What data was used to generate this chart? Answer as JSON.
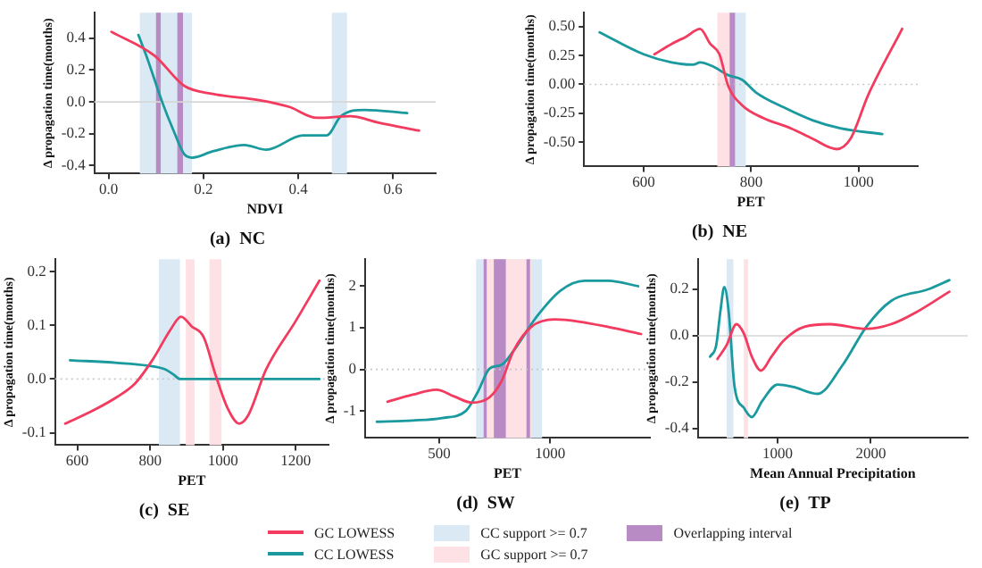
{
  "chart_data": [
    {
      "type": "line",
      "title": "(a)  NC",
      "xlabel": "NDVI",
      "ylabel": "Δ propagation time(months)",
      "xlim": [
        -0.03,
        0.69
      ],
      "xticks": [
        {
          "value": 0,
          "label": "0.0"
        },
        {
          "value": 0.2,
          "label": "0.2"
        },
        {
          "value": 0.4,
          "label": "0.4"
        },
        {
          "value": 0.6,
          "label": "0.6"
        }
      ],
      "ylim": [
        -0.45,
        0.56
      ],
      "yticks": [
        {
          "value": -0.4,
          "label": "-0.4"
        },
        {
          "value": -0.2,
          "label": "-0.2"
        },
        {
          "value": 0,
          "label": "0.0"
        },
        {
          "value": 0.2,
          "label": "0.2"
        },
        {
          "value": 0.4,
          "label": "0.4"
        }
      ],
      "series": [
        {
          "color": "#f23b5f",
          "x": [
            0.006,
            0.097,
            0.16,
            0.22,
            0.32,
            0.38,
            0.44,
            0.51,
            0.57,
            0.655
          ],
          "values": [
            0.44,
            0.29,
            0.1,
            0.05,
            0.01,
            -0.03,
            -0.1,
            -0.09,
            -0.13,
            -0.18
          ]
        },
        {
          "color": "#1a9a9e",
          "x": [
            0.063,
            0.082,
            0.113,
            0.137,
            0.16,
            0.176,
            0.22,
            0.286,
            0.333,
            0.41,
            0.46,
            0.49,
            0.54,
            0.63
          ],
          "values": [
            0.42,
            0.27,
            0,
            -0.18,
            -0.33,
            -0.35,
            -0.31,
            -0.27,
            -0.3,
            -0.21,
            -0.21,
            -0.09,
            -0.05,
            -0.07
          ]
        }
      ],
      "bands": [
        {
          "axis": "x",
          "from": 0.066,
          "to": 0.176,
          "color": "#dbe9f5"
        },
        {
          "axis": "x",
          "from": 0.471,
          "to": 0.503,
          "color": "#dbe9f5"
        },
        {
          "axis": "x",
          "from": 0.1,
          "to": 0.11,
          "color": "#b98bc4"
        },
        {
          "axis": "x",
          "from": 0.145,
          "to": 0.157,
          "color": "#b98bc4"
        }
      ],
      "ref_lines": [
        {
          "axis": "y",
          "value": 0,
          "color": "#d6d6d6",
          "line_style": "solid"
        }
      ]
    },
    {
      "type": "line",
      "title": "(b)  NE",
      "xlabel": "PET",
      "ylabel": "Δ propagation time(months)",
      "xlim": [
        489,
        1110
      ],
      "xticks": [
        600,
        800,
        1000
      ],
      "ylim": [
        -0.71,
        0.62
      ],
      "yticks": [
        {
          "value": -0.5,
          "label": "-0.50"
        },
        {
          "value": -0.25,
          "label": "-0.25"
        },
        {
          "value": 0,
          "label": "0.00"
        },
        {
          "value": 0.25,
          "label": "0.25"
        },
        {
          "value": 0.5,
          "label": "0.50"
        }
      ],
      "series": [
        {
          "color": "#f23b5f",
          "x": [
            620,
            652,
            678,
            705,
            724,
            741,
            757,
            783,
            822,
            874,
            914,
            959,
            985,
            1018,
            1081
          ],
          "values": [
            0.26,
            0.35,
            0.41,
            0.48,
            0.35,
            0.26,
            -0.01,
            -0.18,
            -0.29,
            -0.38,
            -0.47,
            -0.56,
            -0.47,
            -0.09,
            0.48
          ]
        },
        {
          "color": "#1a9a9e",
          "x": [
            518,
            600,
            652,
            692,
            705,
            731,
            757,
            783,
            809,
            861,
            914,
            966,
            1044
          ],
          "values": [
            0.45,
            0.26,
            0.19,
            0.17,
            0.19,
            0.15,
            0.08,
            0.04,
            -0.07,
            -0.2,
            -0.31,
            -0.38,
            -0.43
          ]
        }
      ],
      "bands": [
        {
          "axis": "x",
          "from": 737,
          "to": 770,
          "color": "#fde1e4"
        },
        {
          "axis": "x",
          "from": 760,
          "to": 790,
          "color": "#dbe9f5"
        },
        {
          "axis": "x",
          "from": 760,
          "to": 770,
          "color": "#b98bc4"
        }
      ],
      "ref_lines": [
        {
          "axis": "y",
          "value": 0,
          "color": "#c8c8c8",
          "line_style": "dotted"
        }
      ]
    },
    {
      "type": "line",
      "title": "(c)  SE",
      "xlabel": "PET",
      "ylabel": "Δ propagation time(months)",
      "xlim": [
        539,
        1290
      ],
      "xticks": [
        600,
        800,
        1000,
        1200
      ],
      "ylim": [
        -0.123,
        0.223
      ],
      "yticks": [
        {
          "value": -0.1,
          "label": "-0.1"
        },
        {
          "value": 0,
          "label": "0.0"
        },
        {
          "value": 0.1,
          "label": "0.1"
        },
        {
          "value": 0.2,
          "label": "0.2"
        }
      ],
      "series": [
        {
          "color": "#f23b5f",
          "x": [
            567,
            645,
            710,
            759,
            808,
            857,
            885,
            914,
            947,
            980,
            1012,
            1045,
            1069,
            1118,
            1200,
            1265
          ],
          "values": [
            -0.083,
            -0.058,
            -0.033,
            -0.008,
            0.037,
            0.093,
            0.116,
            0.098,
            0.078,
            0.007,
            -0.053,
            -0.083,
            -0.068,
            0.017,
            0.108,
            0.183
          ]
        },
        {
          "color": "#1a9a9e",
          "x": [
            580,
            710,
            792,
            841,
            865,
            882,
            1265
          ],
          "values": [
            0.035,
            0.03,
            0.025,
            0.018,
            0.008,
            0,
            0
          ]
        }
      ],
      "bands": [
        {
          "axis": "x",
          "from": 824,
          "to": 882,
          "color": "#dbe9f5"
        },
        {
          "axis": "x",
          "from": 898,
          "to": 922,
          "color": "#fde1e4"
        },
        {
          "axis": "x",
          "from": 963,
          "to": 996,
          "color": "#fde1e4"
        }
      ],
      "ref_lines": [
        {
          "axis": "y",
          "value": 0,
          "color": "#c8c8c8",
          "line_style": "dotted"
        }
      ]
    },
    {
      "type": "line",
      "title": "(d)  SW",
      "xlabel": "PET",
      "ylabel": "Δ propagation time(months)",
      "xlim": [
        166,
        1449
      ],
      "xticks": [
        500,
        1000
      ],
      "ylim": [
        -1.65,
        2.65
      ],
      "yticks": [
        -1,
        0,
        1,
        2
      ],
      "series": [
        {
          "name": "GC LOWESS",
          "color": "#f23b5f",
          "x": [
            267,
            380,
            487,
            567,
            647,
            727,
            781,
            834,
            914,
            1021,
            1128,
            1262,
            1409
          ],
          "values": [
            -0.78,
            -0.61,
            -0.49,
            -0.65,
            -0.8,
            -0.67,
            -0.28,
            0.44,
            1.02,
            1.2,
            1.15,
            1.02,
            0.85
          ]
        },
        {
          "name": "CC LOWESS",
          "color": "#1a9a9e",
          "x": [
            219,
            380,
            513,
            620,
            674,
            727,
            781,
            834,
            941,
            1048,
            1155,
            1262,
            1396
          ],
          "values": [
            -1.26,
            -1.23,
            -1.17,
            -1.0,
            -0.54,
            0.02,
            0.11,
            0.44,
            1.28,
            1.9,
            2.13,
            2.13,
            2.0
          ]
        }
      ],
      "bands": [
        {
          "axis": "x",
          "from": 666,
          "to": 963,
          "label": "CC support >= 0.7",
          "color": "#dbe9f5"
        },
        {
          "axis": "x",
          "from": 700,
          "to": 914,
          "label": "GC support >= 0.7",
          "color": "#fde1e4"
        },
        {
          "axis": "x",
          "from": 700,
          "to": 714,
          "label": "Overlapping interval",
          "color": "#b98bc4"
        },
        {
          "axis": "x",
          "from": 746,
          "to": 800,
          "color": "#b98bc4"
        },
        {
          "axis": "x",
          "from": 893,
          "to": 909,
          "color": "#b98bc4"
        }
      ],
      "ref_lines": [
        {
          "axis": "y",
          "value": 0,
          "color": "#c8c8c8",
          "line_style": "dotted"
        }
      ],
      "legend": "bottom"
    },
    {
      "type": "line",
      "title": "(e)  TP",
      "xlabel": "Mean Annual Precipitation",
      "ylabel": "Δ propagation time(months)",
      "xlim": [
        145,
        3039
      ],
      "xticks": [
        1000,
        2000
      ],
      "ylim": [
        -0.44,
        0.33
      ],
      "yticks": [
        {
          "value": -0.4,
          "label": "-0.4"
        },
        {
          "value": -0.2,
          "label": "-0.2"
        },
        {
          "value": 0,
          "label": "0.0"
        },
        {
          "value": 0.2,
          "label": "0.2"
        }
      ],
      "series": [
        {
          "color": "#f23b5f",
          "x": [
            355,
            454,
            559,
            638,
            724,
            822,
            934,
            1066,
            1296,
            1559,
            1954,
            2217,
            2480,
            2842
          ],
          "values": [
            -0.1,
            -0.04,
            0.05,
            0.01,
            -0.09,
            -0.15,
            -0.09,
            -0.02,
            0.04,
            0.05,
            0.03,
            0.05,
            0.1,
            0.19
          ]
        },
        {
          "color": "#1a9a9e",
          "x": [
            276,
            342,
            388,
            428,
            474,
            539,
            638,
            724,
            836,
            1000,
            1164,
            1428,
            1691,
            1954,
            2217,
            2612,
            2842
          ],
          "values": [
            -0.09,
            -0.04,
            0.11,
            0.21,
            0.11,
            -0.22,
            -0.31,
            -0.35,
            -0.28,
            -0.21,
            -0.22,
            -0.25,
            -0.13,
            0.04,
            0.15,
            0.2,
            0.24
          ]
        }
      ],
      "bands": [
        {
          "axis": "x",
          "from": 454,
          "to": 526,
          "color": "#dbe9f5"
        },
        {
          "axis": "x",
          "from": 638,
          "to": 684,
          "color": "#fde1e4"
        }
      ],
      "ref_lines": [
        {
          "axis": "y",
          "value": 0,
          "color": "#d6d6d6",
          "line_style": "solid"
        }
      ]
    }
  ]
}
